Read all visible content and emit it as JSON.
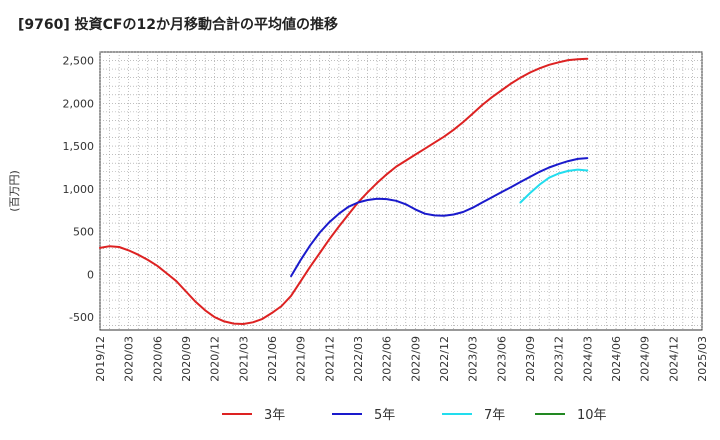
{
  "chart_data": {
    "type": "line",
    "title": "[9760]  投資CFの12か月移動合計の平均値の推移",
    "xlabel": "",
    "ylabel": "(百万円)",
    "ylim": [
      -650,
      2600
    ],
    "yticks": [
      -500,
      0,
      500,
      1000,
      1500,
      2000,
      2500
    ],
    "ytick_labels": [
      "-500",
      "0",
      "500",
      "1,000",
      "1,500",
      "2,000",
      "2,500"
    ],
    "x_tick_labels": [
      "2019/12",
      "2020/03",
      "2020/06",
      "2020/09",
      "2020/12",
      "2021/03",
      "2021/06",
      "2021/09",
      "2021/12",
      "2022/03",
      "2022/06",
      "2022/09",
      "2022/12",
      "2023/03",
      "2023/06",
      "2023/09",
      "2023/12",
      "2024/03",
      "2024/06",
      "2024/09",
      "2024/12",
      "2025/03"
    ],
    "grid": true,
    "legend_position": "bottom",
    "series": [
      {
        "name": "3年",
        "color": "#dd2222",
        "points": [
          [
            "2019/12",
            310
          ],
          [
            "2020/01",
            330
          ],
          [
            "2020/02",
            320
          ],
          [
            "2020/03",
            280
          ],
          [
            "2020/04",
            230
          ],
          [
            "2020/05",
            170
          ],
          [
            "2020/06",
            100
          ],
          [
            "2020/07",
            10
          ],
          [
            "2020/08",
            -80
          ],
          [
            "2020/09",
            -200
          ],
          [
            "2020/10",
            -320
          ],
          [
            "2020/11",
            -420
          ],
          [
            "2020/12",
            -500
          ],
          [
            "2021/01",
            -550
          ],
          [
            "2021/02",
            -575
          ],
          [
            "2021/03",
            -580
          ],
          [
            "2021/04",
            -560
          ],
          [
            "2021/05",
            -520
          ],
          [
            "2021/06",
            -450
          ],
          [
            "2021/07",
            -370
          ],
          [
            "2021/08",
            -250
          ],
          [
            "2021/09",
            -80
          ],
          [
            "2021/10",
            90
          ],
          [
            "2021/11",
            250
          ],
          [
            "2021/12",
            410
          ],
          [
            "2022/01",
            560
          ],
          [
            "2022/02",
            700
          ],
          [
            "2022/03",
            840
          ],
          [
            "2022/04",
            960
          ],
          [
            "2022/05",
            1070
          ],
          [
            "2022/06",
            1170
          ],
          [
            "2022/07",
            1260
          ],
          [
            "2022/08",
            1330
          ],
          [
            "2022/09",
            1400
          ],
          [
            "2022/10",
            1470
          ],
          [
            "2022/11",
            1540
          ],
          [
            "2022/12",
            1610
          ],
          [
            "2023/01",
            1690
          ],
          [
            "2023/02",
            1780
          ],
          [
            "2023/03",
            1880
          ],
          [
            "2023/04",
            1980
          ],
          [
            "2023/05",
            2070
          ],
          [
            "2023/06",
            2150
          ],
          [
            "2023/07",
            2230
          ],
          [
            "2023/08",
            2300
          ],
          [
            "2023/09",
            2360
          ],
          [
            "2023/10",
            2410
          ],
          [
            "2023/11",
            2450
          ],
          [
            "2023/12",
            2480
          ],
          [
            "2024/01",
            2505
          ],
          [
            "2024/02",
            2515
          ],
          [
            "2024/03",
            2520
          ]
        ]
      },
      {
        "name": "5年",
        "color": "#1a1acc",
        "points": [
          [
            "2021/08",
            -20
          ],
          [
            "2021/09",
            170
          ],
          [
            "2021/10",
            340
          ],
          [
            "2021/11",
            490
          ],
          [
            "2021/12",
            610
          ],
          [
            "2022/01",
            710
          ],
          [
            "2022/02",
            790
          ],
          [
            "2022/03",
            840
          ],
          [
            "2022/04",
            870
          ],
          [
            "2022/05",
            885
          ],
          [
            "2022/06",
            880
          ],
          [
            "2022/07",
            860
          ],
          [
            "2022/08",
            820
          ],
          [
            "2022/09",
            760
          ],
          [
            "2022/10",
            710
          ],
          [
            "2022/11",
            690
          ],
          [
            "2022/12",
            685
          ],
          [
            "2023/01",
            700
          ],
          [
            "2023/02",
            730
          ],
          [
            "2023/03",
            780
          ],
          [
            "2023/04",
            840
          ],
          [
            "2023/05",
            900
          ],
          [
            "2023/06",
            960
          ],
          [
            "2023/07",
            1020
          ],
          [
            "2023/08",
            1080
          ],
          [
            "2023/09",
            1140
          ],
          [
            "2023/10",
            1200
          ],
          [
            "2023/11",
            1250
          ],
          [
            "2023/12",
            1290
          ],
          [
            "2024/01",
            1325
          ],
          [
            "2024/02",
            1350
          ],
          [
            "2024/03",
            1360
          ]
        ]
      },
      {
        "name": "7年",
        "color": "#22ddee",
        "points": [
          [
            "2023/08",
            840
          ],
          [
            "2023/09",
            950
          ],
          [
            "2023/10",
            1050
          ],
          [
            "2023/11",
            1130
          ],
          [
            "2023/12",
            1180
          ],
          [
            "2024/01",
            1210
          ],
          [
            "2024/02",
            1225
          ],
          [
            "2024/03",
            1215
          ]
        ]
      },
      {
        "name": "10年",
        "color": "#228822",
        "points": []
      }
    ]
  }
}
